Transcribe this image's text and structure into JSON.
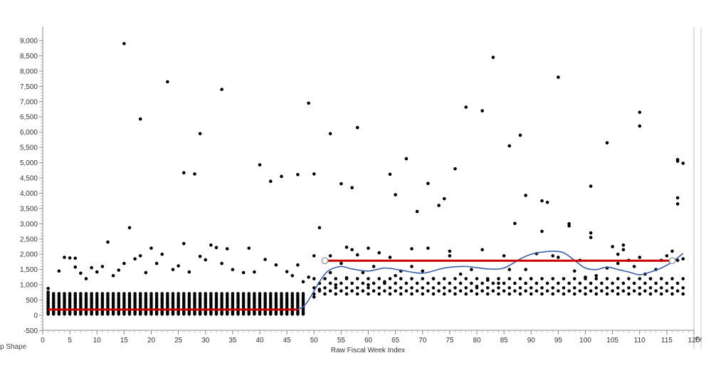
{
  "chart_data": {
    "type": "scatter",
    "title": "",
    "xlabel": "Raw Fiscal Week Index",
    "ylabel": "",
    "xlim": [
      0,
      120
    ],
    "ylim": [
      -500,
      9300
    ],
    "x_ticks": [
      0,
      5,
      10,
      15,
      20,
      25,
      30,
      35,
      40,
      45,
      50,
      55,
      60,
      65,
      70,
      75,
      80,
      85,
      90,
      95,
      100,
      105,
      110,
      115,
      120
    ],
    "y_ticks": [
      -500,
      0,
      500,
      1000,
      1500,
      2000,
      2500,
      3000,
      3500,
      4000,
      4500,
      5000,
      5500,
      6000,
      6500,
      7000,
      7500,
      8000,
      8500,
      9000
    ],
    "grid": false,
    "legend": "none",
    "points": {
      "dense_band": {
        "description_weeks": [
          1,
          48
        ],
        "y_values": [
          40,
          90,
          150,
          210,
          270,
          330,
          390,
          450,
          510,
          570,
          640,
          710
        ]
      },
      "sparse": [
        [
          1,
          760
        ],
        [
          1,
          880
        ],
        [
          3,
          1450
        ],
        [
          4,
          1900
        ],
        [
          5,
          1880
        ],
        [
          6,
          1870
        ],
        [
          6,
          1580
        ],
        [
          7,
          1380
        ],
        [
          8,
          1200
        ],
        [
          9,
          1560
        ],
        [
          10,
          1420
        ],
        [
          11,
          1600
        ],
        [
          12,
          2400
        ],
        [
          13,
          1300
        ],
        [
          14,
          1480
        ],
        [
          15,
          8900
        ],
        [
          15,
          1700
        ],
        [
          16,
          2870
        ],
        [
          17,
          1850
        ],
        [
          18,
          6430
        ],
        [
          18,
          1950
        ],
        [
          19,
          1400
        ],
        [
          20,
          2200
        ],
        [
          21,
          1700
        ],
        [
          22,
          2000
        ],
        [
          23,
          7650
        ],
        [
          24,
          1500
        ],
        [
          25,
          1620
        ],
        [
          26,
          2350
        ],
        [
          26,
          4670
        ],
        [
          27,
          1420
        ],
        [
          28,
          4630
        ],
        [
          29,
          5950
        ],
        [
          29,
          1930
        ],
        [
          30,
          1820
        ],
        [
          31,
          2300
        ],
        [
          32,
          2220
        ],
        [
          33,
          7400
        ],
        [
          33,
          1700
        ],
        [
          34,
          2180
        ],
        [
          35,
          1500
        ],
        [
          37,
          1400
        ],
        [
          38,
          2200
        ],
        [
          39,
          1420
        ],
        [
          40,
          4930
        ],
        [
          41,
          1830
        ],
        [
          42,
          4390
        ],
        [
          43,
          1650
        ],
        [
          44,
          4550
        ],
        [
          45,
          1430
        ],
        [
          46,
          1300
        ],
        [
          47,
          4610
        ],
        [
          47,
          1650
        ],
        [
          48,
          1100
        ],
        [
          49,
          6950
        ],
        [
          49,
          1250
        ],
        [
          50,
          4630
        ],
        [
          50,
          1950
        ],
        [
          50,
          600
        ],
        [
          51,
          2870
        ],
        [
          51,
          850
        ],
        [
          52,
          1800
        ],
        [
          53,
          5950
        ],
        [
          53,
          1950
        ],
        [
          53,
          1400
        ],
        [
          54,
          1000
        ],
        [
          55,
          4310
        ],
        [
          55,
          1700
        ],
        [
          56,
          2230
        ],
        [
          56,
          1230
        ],
        [
          57,
          4180
        ],
        [
          57,
          2150
        ],
        [
          58,
          6150
        ],
        [
          58,
          1980
        ],
        [
          59,
          1400
        ],
        [
          60,
          2200
        ],
        [
          60,
          1000
        ],
        [
          61,
          1600
        ],
        [
          62,
          2050
        ],
        [
          63,
          1100
        ],
        [
          64,
          4620
        ],
        [
          64,
          1900
        ],
        [
          65,
          3950
        ],
        [
          65,
          1300
        ],
        [
          66,
          1450
        ],
        [
          67,
          5130
        ],
        [
          68,
          1600
        ],
        [
          68,
          2180
        ],
        [
          69,
          3400
        ],
        [
          70,
          1450
        ],
        [
          71,
          4320
        ],
        [
          71,
          2200
        ],
        [
          72,
          1200
        ],
        [
          73,
          3600
        ],
        [
          74,
          3820
        ],
        [
          75,
          2100
        ],
        [
          75,
          1950
        ],
        [
          76,
          4800
        ],
        [
          77,
          1350
        ],
        [
          78,
          6820
        ],
        [
          79,
          1500
        ],
        [
          80,
          950
        ],
        [
          81,
          6700
        ],
        [
          81,
          2150
        ],
        [
          82,
          1150
        ],
        [
          83,
          8450
        ],
        [
          84,
          1050
        ],
        [
          85,
          1950
        ],
        [
          86,
          5550
        ],
        [
          86,
          1500
        ],
        [
          87,
          3010
        ],
        [
          88,
          5900
        ],
        [
          89,
          3930
        ],
        [
          89,
          1500
        ],
        [
          90,
          1200
        ],
        [
          91,
          2020
        ],
        [
          92,
          3750
        ],
        [
          92,
          2750
        ],
        [
          93,
          3700
        ],
        [
          94,
          1950
        ],
        [
          95,
          7800
        ],
        [
          95,
          1900
        ],
        [
          97,
          3000
        ],
        [
          97,
          2930
        ],
        [
          98,
          1450
        ],
        [
          99,
          1800
        ],
        [
          100,
          1250
        ],
        [
          101,
          4230
        ],
        [
          101,
          2700
        ],
        [
          101,
          2550
        ],
        [
          102,
          1300
        ],
        [
          104,
          5650
        ],
        [
          104,
          1550
        ],
        [
          105,
          2250
        ],
        [
          106,
          2000
        ],
        [
          106,
          1700
        ],
        [
          107,
          2300
        ],
        [
          107,
          2150
        ],
        [
          108,
          1800
        ],
        [
          109,
          1600
        ],
        [
          110,
          6650
        ],
        [
          110,
          6200
        ],
        [
          110,
          1900
        ],
        [
          111,
          1350
        ],
        [
          112,
          1200
        ],
        [
          113,
          1500
        ],
        [
          114,
          1800
        ],
        [
          115,
          1950
        ],
        [
          116,
          2100
        ],
        [
          117,
          5050
        ],
        [
          117,
          5100
        ],
        [
          117,
          3850
        ],
        [
          117,
          3650
        ],
        [
          117,
          1800
        ],
        [
          118,
          4980
        ],
        [
          118,
          1850
        ]
      ],
      "lower_band_weeks": [
        50,
        118
      ],
      "lower_band_values": [
        700,
        800,
        900,
        1050,
        1200
      ]
    },
    "step_fit": {
      "color": "#cc0000",
      "segments": [
        {
          "x": [
            1,
            47
          ],
          "y": 190
        },
        {
          "x": [
            52,
            116
          ],
          "y": 1790
        }
      ]
    },
    "smoother": {
      "color": "#3a5fa8",
      "x": [
        47,
        48,
        49,
        50,
        51,
        52,
        53,
        55,
        57,
        60,
        63,
        66,
        70,
        74,
        78,
        82,
        85,
        88,
        90,
        92,
        94,
        96,
        98,
        100,
        102,
        104,
        106,
        108,
        110,
        112,
        114,
        116,
        118
      ],
      "y": [
        200,
        280,
        500,
        800,
        1100,
        1350,
        1500,
        1600,
        1520,
        1450,
        1550,
        1480,
        1380,
        1550,
        1600,
        1520,
        1550,
        1850,
        2000,
        2070,
        2100,
        2050,
        1800,
        1550,
        1500,
        1580,
        1500,
        1420,
        1330,
        1420,
        1550,
        1750,
        2030
      ]
    },
    "markers": [
      {
        "x": 52,
        "y": 1790
      },
      {
        "x": 116,
        "y": 1790
      }
    ]
  },
  "edge_labels": {
    "bottom_left": "p Shape",
    "bottom_right": "Fr"
  }
}
